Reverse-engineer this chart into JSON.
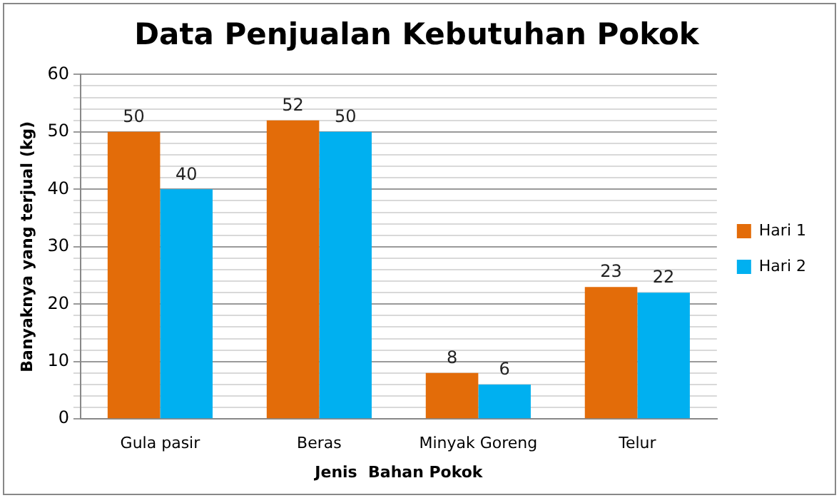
{
  "chart_data": {
    "type": "bar",
    "title": "Data Penjualan Kebutuhan Pokok",
    "xlabel": "Jenis  Bahan Pokok",
    "ylabel": "Banyaknya yang terjual (kg)",
    "categories": [
      "Gula pasir",
      "Beras",
      "Minyak Goreng",
      "Telur"
    ],
    "series": [
      {
        "name": "Hari 1",
        "color": "#e36c09",
        "values": [
          50,
          52,
          8,
          23
        ]
      },
      {
        "name": "Hari 2",
        "color": "#00b0f0",
        "values": [
          40,
          50,
          6,
          22
        ]
      }
    ],
    "ylim": [
      0,
      60
    ],
    "yticks": [
      0,
      {
        "value": 2,
        "label": null
      },
      {
        "value": 4,
        "label": null
      },
      {
        "value": 6,
        "label": null
      },
      {
        "value": 8,
        "label": null
      },
      10,
      {
        "value": 12,
        "label": null
      },
      {
        "value": 14,
        "label": null
      },
      {
        "value": 16,
        "label": null
      },
      {
        "value": 18,
        "label": null
      },
      20,
      {
        "value": 22,
        "label": null
      },
      {
        "value": 24,
        "label": null
      },
      {
        "value": 26,
        "label": null
      },
      {
        "value": 28,
        "label": null
      },
      30,
      {
        "value": 32,
        "label": null
      },
      {
        "value": 34,
        "label": null
      },
      {
        "value": 36,
        "label": null
      },
      {
        "value": 38,
        "label": null
      },
      40,
      {
        "value": 42,
        "label": null
      },
      {
        "value": 44,
        "label": null
      },
      {
        "value": 46,
        "label": null
      },
      {
        "value": 48,
        "label": null
      },
      50,
      {
        "value": 52,
        "label": null
      },
      {
        "value": 54,
        "label": null
      },
      {
        "value": 56,
        "label": null
      },
      {
        "value": 58,
        "label": null
      },
      60
    ],
    "grid": "y",
    "legend": "right",
    "data_labels": true
  }
}
